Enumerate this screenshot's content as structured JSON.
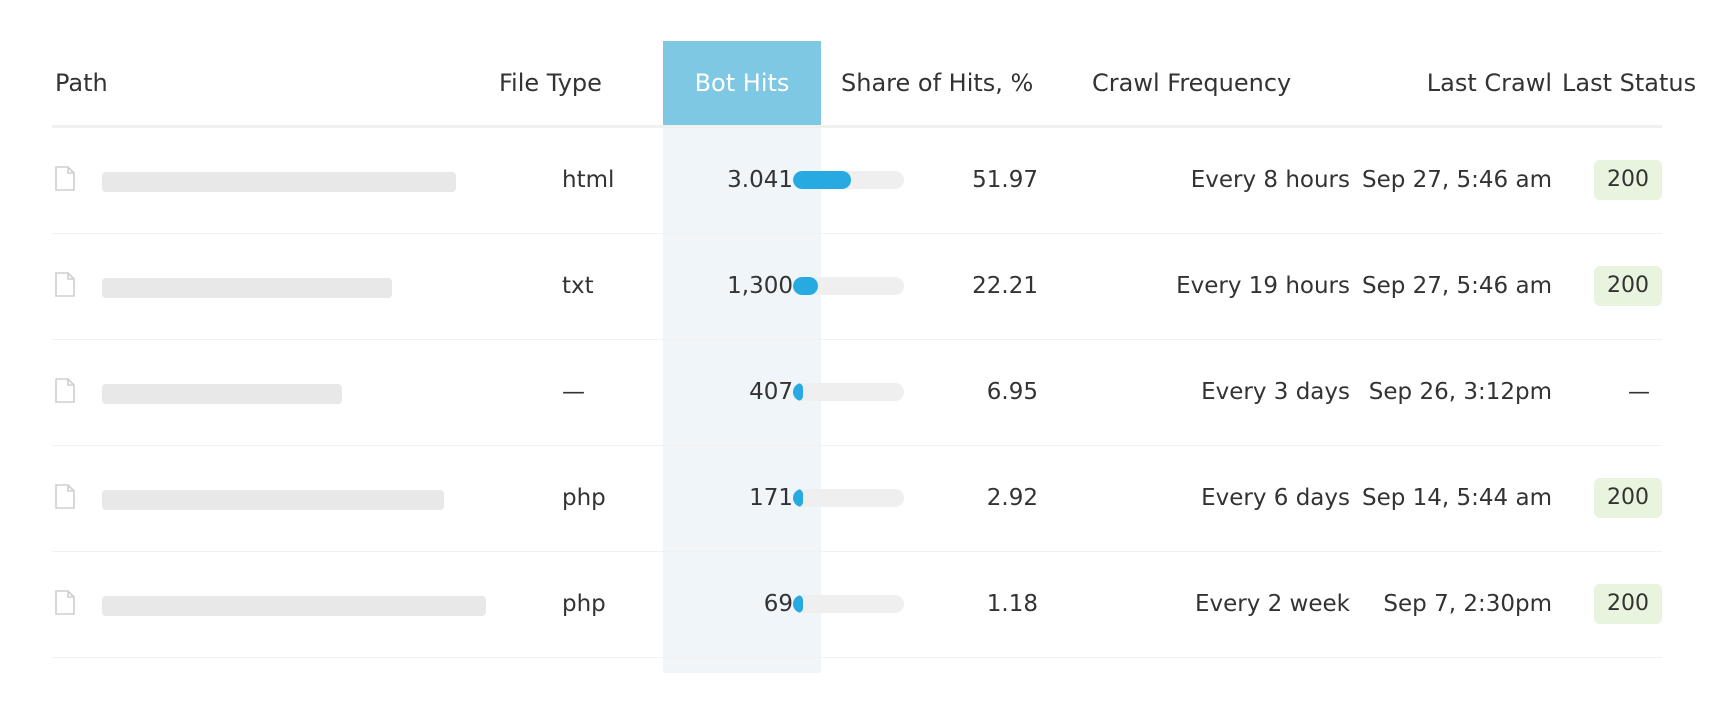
{
  "colors": {
    "sort_header_bg": "#7fc8e4",
    "sort_column_bg": "#eff5f8",
    "bar_fill": "#27aae1",
    "bar_track": "#efefef",
    "status_badge_bg": "#e8f4de"
  },
  "header": {
    "path": "Path",
    "file_type": "File Type",
    "bot_hits": "Bot Hits",
    "share": "Share of Hits, %",
    "crawl_frequency": "Crawl Frequency",
    "last_crawl": "Last Crawl",
    "last_status": "Last Status"
  },
  "rows": [
    {
      "icon": "file-icon",
      "file_type": "html",
      "bot_hits": "3.041",
      "share": "51.97",
      "share_fraction": 0.5197,
      "crawl_frequency": "Every 8 hours",
      "last_crawl": "Sep 27, 5:46 am",
      "last_status": "200"
    },
    {
      "icon": "file-icon",
      "file_type": "txt",
      "bot_hits": "1,300",
      "share": "22.21",
      "share_fraction": 0.2221,
      "crawl_frequency": "Every 19 hours",
      "last_crawl": "Sep 27, 5:46 am",
      "last_status": "200"
    },
    {
      "icon": "file-icon",
      "file_type": "—",
      "bot_hits": "407",
      "share": "6.95",
      "share_fraction": 0.0695,
      "crawl_frequency": "Every 3 days",
      "last_crawl": "Sep 26, 3:12pm",
      "last_status": "—"
    },
    {
      "icon": "file-icon",
      "file_type": "php",
      "bot_hits": "171",
      "share": "2.92",
      "share_fraction": 0.0292,
      "crawl_frequency": "Every 6 days",
      "last_crawl": "Sep 14, 5:44 am",
      "last_status": "200"
    },
    {
      "icon": "file-icon",
      "file_type": "php",
      "bot_hits": "69",
      "share": "1.18",
      "share_fraction": 0.0118,
      "crawl_frequency": "Every 2 week",
      "last_crawl": "Sep 7, 2:30pm",
      "last_status": "200"
    }
  ]
}
